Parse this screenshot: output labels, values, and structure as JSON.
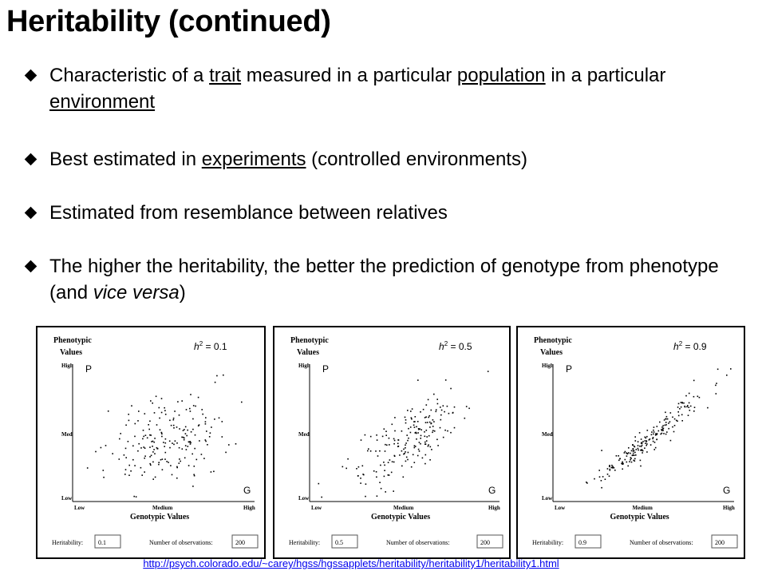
{
  "slide": {
    "title": "Heritability (continued)",
    "bullets": [
      {
        "parts": [
          {
            "t": "Characteristic of a "
          },
          {
            "t": "trait",
            "u": true
          },
          {
            "t": " measured in a particular "
          },
          {
            "t": "population",
            "u": true
          },
          {
            "t": " in a particular "
          },
          {
            "t": "environment",
            "u": true
          }
        ]
      },
      {
        "parts": [
          {
            "t": "Best estimated in "
          },
          {
            "t": "experiments",
            "u": true
          },
          {
            "t": " (controlled environments)"
          }
        ]
      },
      {
        "parts": [
          {
            "t": "Estimated from resemblance between relatives"
          }
        ]
      },
      {
        "parts": [
          {
            "t": "The higher the heritability, the better the prediction of genotype from phenotype (and "
          },
          {
            "t": "vice versa",
            "i": true
          },
          {
            "t": ")"
          }
        ]
      }
    ],
    "credit_url": "http://psych.colorado.edu/~carey/hgss/hgssapplets/heritability/heritability1/heritability1.html"
  },
  "panels": [
    {
      "h2_label": "h",
      "h2_value": "= 0.1",
      "heritability": "0.1",
      "observations": "200"
    },
    {
      "h2_label": "h",
      "h2_value": "= 0.5",
      "heritability": "0.5",
      "observations": "200"
    },
    {
      "h2_label": "h",
      "h2_value": "= 0.9",
      "heritability": "0.9",
      "observations": "200"
    }
  ],
  "plot_labels": {
    "y_title_1": "Phenotypic",
    "y_title_2": "Values",
    "y_high": "High",
    "y_med": "Med",
    "y_low": "Low",
    "x_low": "Low",
    "x_med": "Medium",
    "x_high": "High",
    "x_title": "Genotypic Values",
    "p_marker": "P",
    "g_marker": "G",
    "heritability_label": "Heritability:",
    "observations_label": "Number of observations:",
    "sup": "2"
  }
}
